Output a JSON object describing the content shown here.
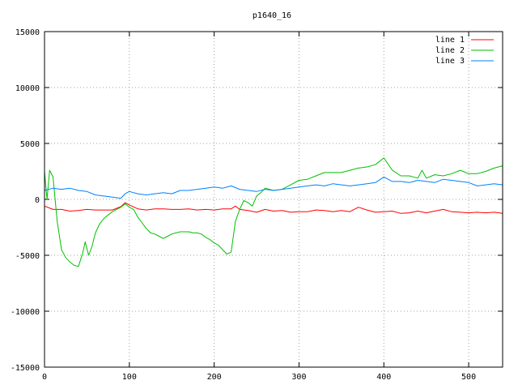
{
  "chart_data": {
    "type": "line",
    "title": "p1640_16",
    "xlabel": "",
    "ylabel": "",
    "xlim": [
      0,
      540
    ],
    "ylim": [
      -15000,
      15000
    ],
    "xticks": [
      0,
      100,
      200,
      300,
      400,
      500
    ],
    "yticks": [
      -15000,
      -10000,
      -5000,
      0,
      5000,
      10000,
      15000
    ],
    "grid": true,
    "legend": "top-right",
    "series": [
      {
        "name": "line 1",
        "color": "#ff0000",
        "points": [
          [
            0,
            -600
          ],
          [
            10,
            -900
          ],
          [
            20,
            -900
          ],
          [
            30,
            -1050
          ],
          [
            40,
            -1000
          ],
          [
            50,
            -900
          ],
          [
            60,
            -950
          ],
          [
            70,
            -950
          ],
          [
            80,
            -950
          ],
          [
            90,
            -650
          ],
          [
            95,
            -300
          ],
          [
            100,
            -500
          ],
          [
            110,
            -850
          ],
          [
            120,
            -950
          ],
          [
            130,
            -850
          ],
          [
            140,
            -850
          ],
          [
            150,
            -900
          ],
          [
            160,
            -900
          ],
          [
            170,
            -850
          ],
          [
            180,
            -950
          ],
          [
            190,
            -900
          ],
          [
            200,
            -950
          ],
          [
            210,
            -850
          ],
          [
            220,
            -850
          ],
          [
            225,
            -600
          ],
          [
            230,
            -900
          ],
          [
            240,
            -1000
          ],
          [
            250,
            -1150
          ],
          [
            260,
            -900
          ],
          [
            270,
            -1050
          ],
          [
            280,
            -1000
          ],
          [
            290,
            -1150
          ],
          [
            300,
            -1100
          ],
          [
            310,
            -1100
          ],
          [
            320,
            -950
          ],
          [
            330,
            -1000
          ],
          [
            340,
            -1100
          ],
          [
            350,
            -1000
          ],
          [
            360,
            -1100
          ],
          [
            370,
            -700
          ],
          [
            380,
            -950
          ],
          [
            390,
            -1150
          ],
          [
            400,
            -1100
          ],
          [
            410,
            -1050
          ],
          [
            420,
            -1250
          ],
          [
            430,
            -1200
          ],
          [
            440,
            -1050
          ],
          [
            450,
            -1200
          ],
          [
            460,
            -1050
          ],
          [
            470,
            -900
          ],
          [
            480,
            -1100
          ],
          [
            490,
            -1150
          ],
          [
            500,
            -1200
          ],
          [
            510,
            -1150
          ],
          [
            520,
            -1200
          ],
          [
            530,
            -1150
          ],
          [
            540,
            -1250
          ]
        ]
      },
      {
        "name": "line 2",
        "color": "#00c000",
        "points": [
          [
            0,
            2500
          ],
          [
            3,
            0
          ],
          [
            6,
            2600
          ],
          [
            10,
            2000
          ],
          [
            15,
            -2000
          ],
          [
            20,
            -4500
          ],
          [
            25,
            -5200
          ],
          [
            30,
            -5600
          ],
          [
            35,
            -5900
          ],
          [
            40,
            -6000
          ],
          [
            45,
            -4800
          ],
          [
            48,
            -3800
          ],
          [
            52,
            -5000
          ],
          [
            56,
            -4200
          ],
          [
            60,
            -3000
          ],
          [
            65,
            -2200
          ],
          [
            70,
            -1700
          ],
          [
            75,
            -1400
          ],
          [
            80,
            -1100
          ],
          [
            85,
            -900
          ],
          [
            90,
            -700
          ],
          [
            95,
            -400
          ],
          [
            100,
            -700
          ],
          [
            105,
            -900
          ],
          [
            110,
            -1600
          ],
          [
            115,
            -2100
          ],
          [
            120,
            -2600
          ],
          [
            125,
            -3000
          ],
          [
            130,
            -3100
          ],
          [
            135,
            -3300
          ],
          [
            140,
            -3500
          ],
          [
            145,
            -3300
          ],
          [
            150,
            -3100
          ],
          [
            155,
            -3000
          ],
          [
            160,
            -2900
          ],
          [
            165,
            -2900
          ],
          [
            170,
            -2900
          ],
          [
            175,
            -3000
          ],
          [
            180,
            -3000
          ],
          [
            185,
            -3100
          ],
          [
            190,
            -3400
          ],
          [
            195,
            -3600
          ],
          [
            200,
            -3900
          ],
          [
            205,
            -4100
          ],
          [
            210,
            -4500
          ],
          [
            215,
            -4900
          ],
          [
            220,
            -4700
          ],
          [
            225,
            -2000
          ],
          [
            230,
            -900
          ],
          [
            235,
            -100
          ],
          [
            240,
            -300
          ],
          [
            245,
            -600
          ],
          [
            250,
            300
          ],
          [
            255,
            600
          ],
          [
            260,
            1000
          ],
          [
            270,
            800
          ],
          [
            280,
            900
          ],
          [
            290,
            1300
          ],
          [
            300,
            1700
          ],
          [
            310,
            1800
          ],
          [
            320,
            2100
          ],
          [
            330,
            2400
          ],
          [
            340,
            2400
          ],
          [
            350,
            2400
          ],
          [
            360,
            2600
          ],
          [
            370,
            2800
          ],
          [
            380,
            2900
          ],
          [
            390,
            3100
          ],
          [
            400,
            3700
          ],
          [
            410,
            2600
          ],
          [
            420,
            2100
          ],
          [
            430,
            2100
          ],
          [
            440,
            1900
          ],
          [
            445,
            2600
          ],
          [
            450,
            1900
          ],
          [
            460,
            2200
          ],
          [
            470,
            2100
          ],
          [
            480,
            2300
          ],
          [
            490,
            2600
          ],
          [
            500,
            2300
          ],
          [
            510,
            2300
          ],
          [
            520,
            2500
          ],
          [
            530,
            2800
          ],
          [
            540,
            3000
          ]
        ]
      },
      {
        "name": "line 3",
        "color": "#0080ff",
        "points": [
          [
            0,
            800
          ],
          [
            10,
            1000
          ],
          [
            20,
            900
          ],
          [
            30,
            1000
          ],
          [
            40,
            800
          ],
          [
            50,
            700
          ],
          [
            60,
            400
          ],
          [
            70,
            300
          ],
          [
            80,
            200
          ],
          [
            90,
            100
          ],
          [
            95,
            500
          ],
          [
            100,
            700
          ],
          [
            110,
            500
          ],
          [
            120,
            400
          ],
          [
            130,
            500
          ],
          [
            140,
            600
          ],
          [
            150,
            500
          ],
          [
            160,
            800
          ],
          [
            170,
            800
          ],
          [
            180,
            900
          ],
          [
            190,
            1000
          ],
          [
            200,
            1100
          ],
          [
            210,
            1000
          ],
          [
            220,
            1200
          ],
          [
            230,
            900
          ],
          [
            240,
            800
          ],
          [
            250,
            700
          ],
          [
            260,
            900
          ],
          [
            270,
            800
          ],
          [
            280,
            900
          ],
          [
            290,
            1000
          ],
          [
            300,
            1100
          ],
          [
            310,
            1200
          ],
          [
            320,
            1300
          ],
          [
            330,
            1200
          ],
          [
            340,
            1400
          ],
          [
            350,
            1300
          ],
          [
            360,
            1200
          ],
          [
            370,
            1300
          ],
          [
            380,
            1400
          ],
          [
            390,
            1500
          ],
          [
            400,
            2000
          ],
          [
            410,
            1600
          ],
          [
            420,
            1600
          ],
          [
            430,
            1500
          ],
          [
            440,
            1700
          ],
          [
            450,
            1600
          ],
          [
            460,
            1500
          ],
          [
            470,
            1800
          ],
          [
            480,
            1700
          ],
          [
            490,
            1600
          ],
          [
            500,
            1500
          ],
          [
            510,
            1200
          ],
          [
            520,
            1300
          ],
          [
            530,
            1400
          ],
          [
            540,
            1300
          ]
        ]
      }
    ]
  }
}
